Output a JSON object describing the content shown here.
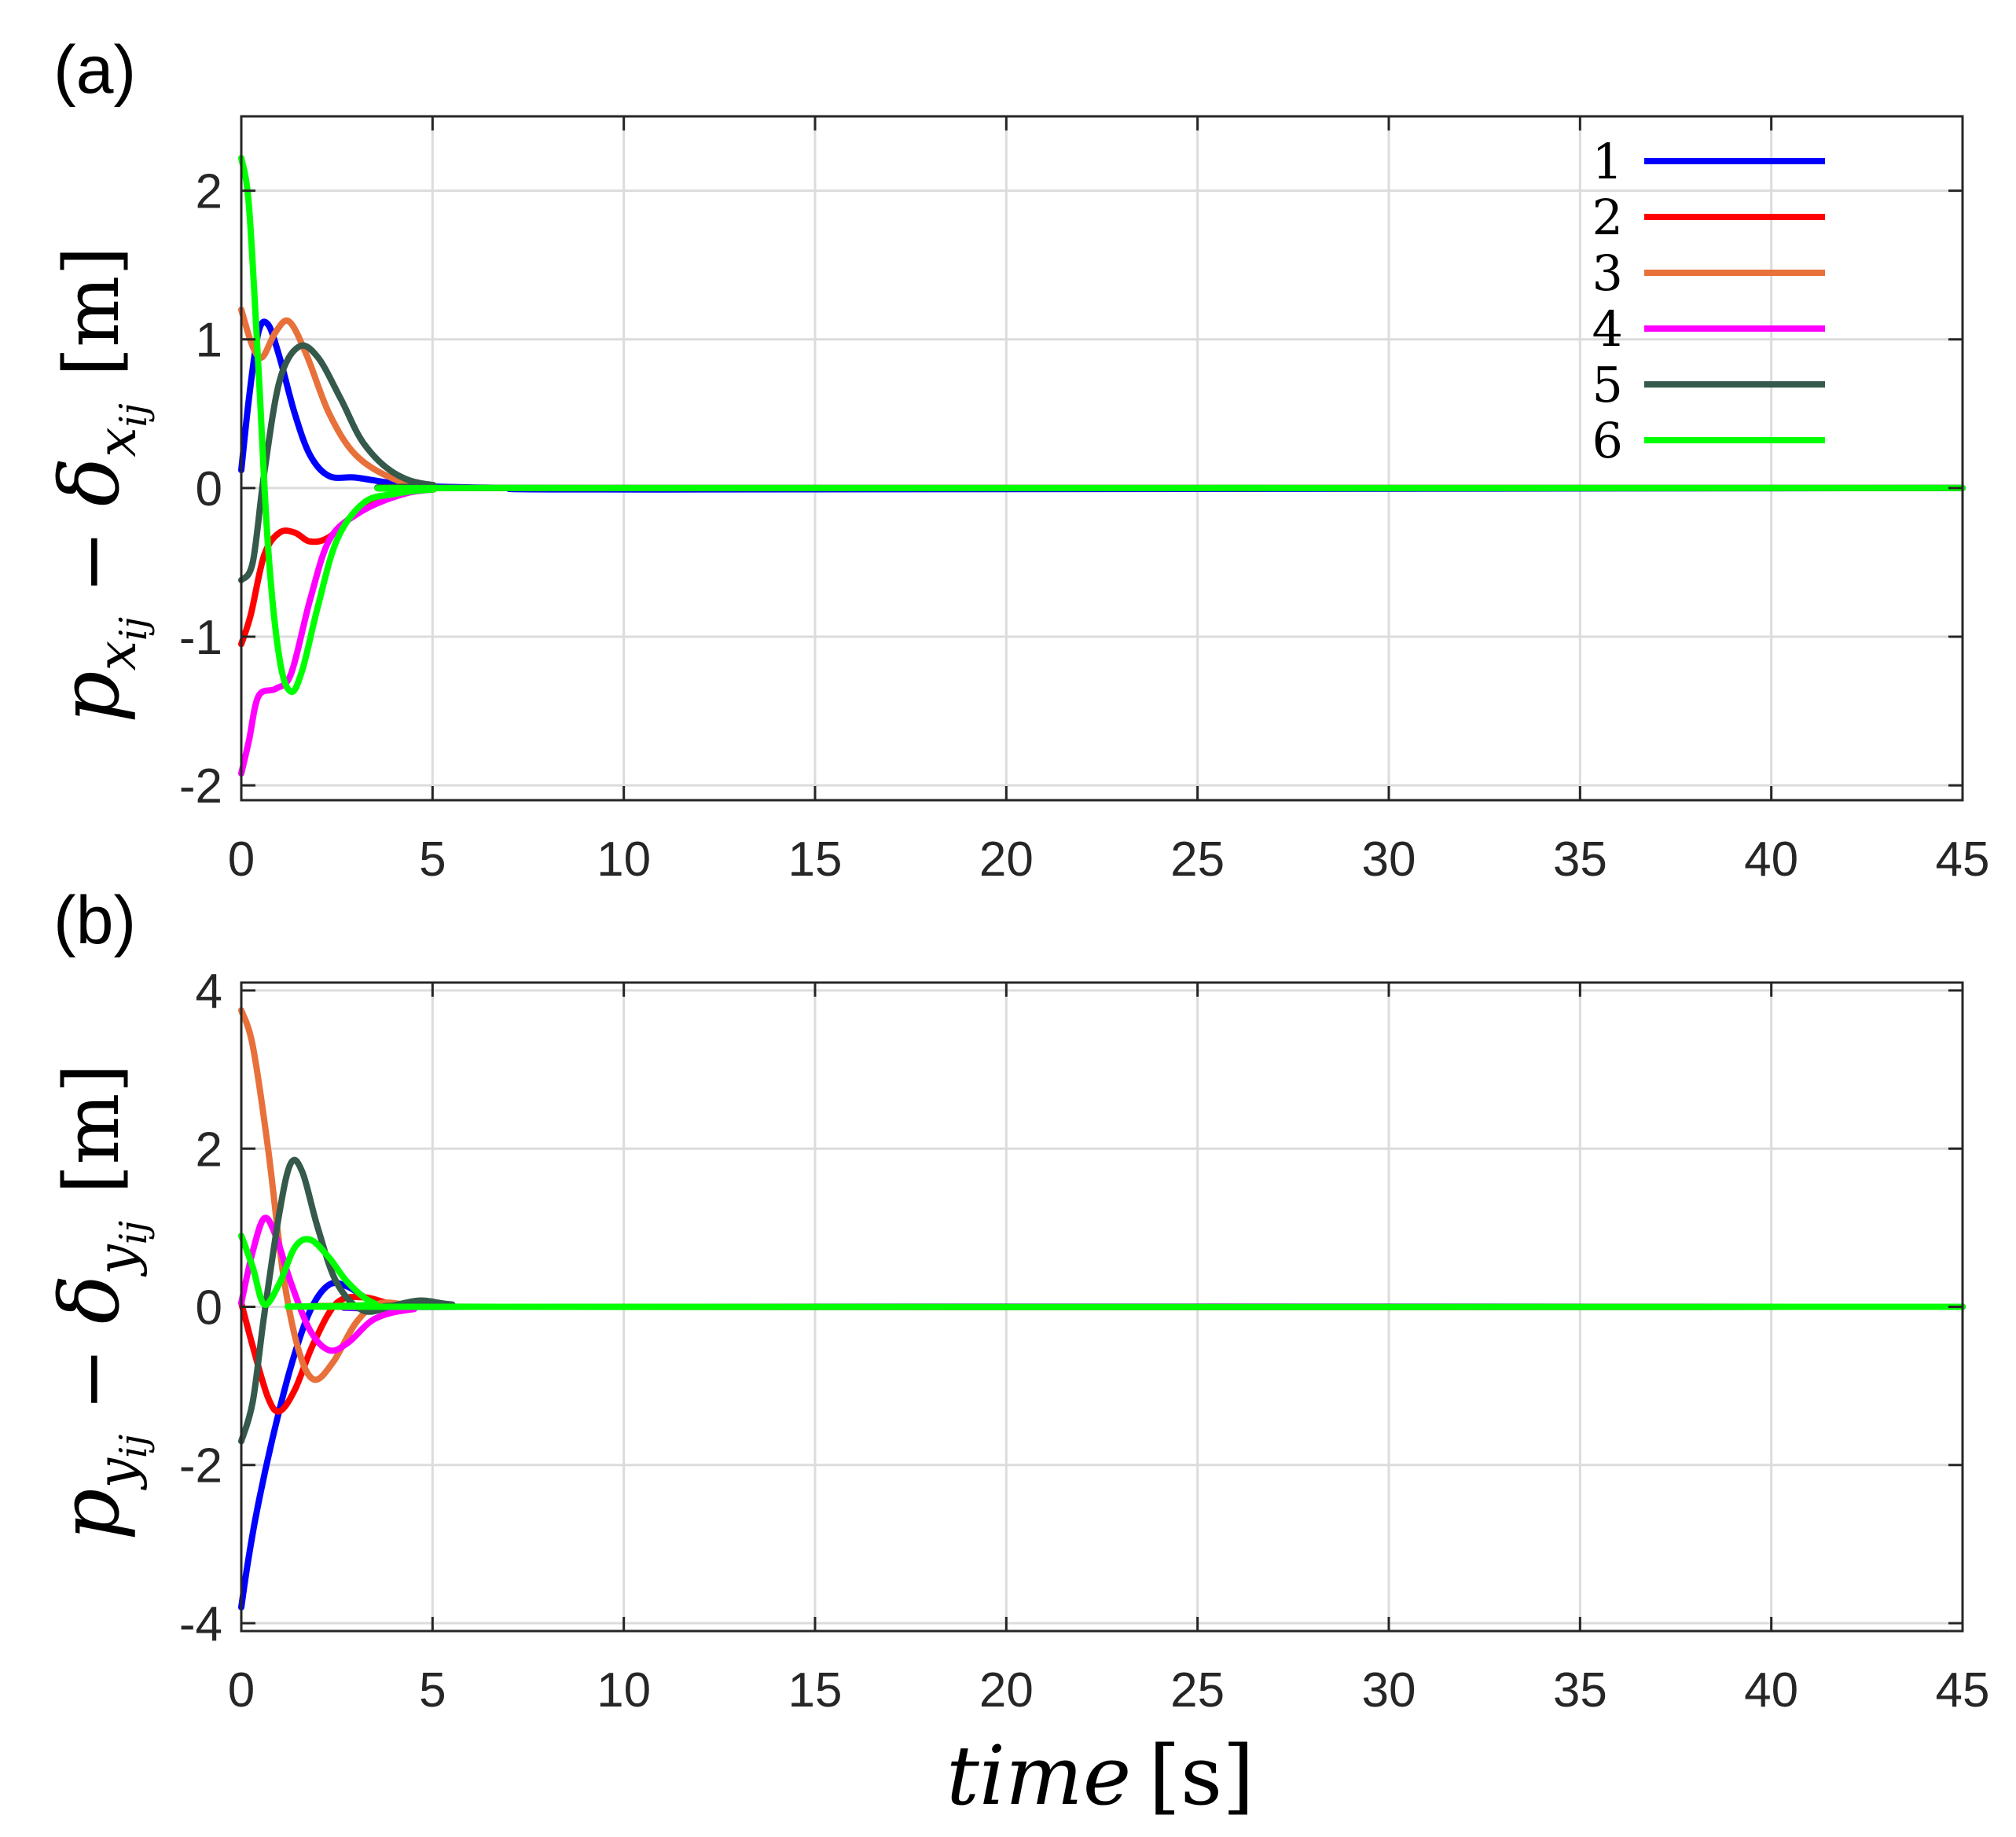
{
  "figure": {
    "xlabel_var": "time",
    "xlabel_unit": "[s]"
  },
  "chart_data": [
    {
      "type": "line",
      "panel_label": "(a)",
      "ylabel": {
        "var": "p",
        "sub": "x",
        "subsub": "ij",
        "minus": "−",
        "delta": "δ",
        "unit": "[m]"
      },
      "xlim": [
        0,
        45
      ],
      "ylim": [
        -2.1,
        2.5
      ],
      "xticks": [
        0,
        5,
        10,
        15,
        20,
        25,
        30,
        35,
        40,
        45
      ],
      "yticks": [
        -2,
        -1,
        0,
        1,
        2
      ],
      "grid": true,
      "legend_position": "top-right",
      "series": [
        {
          "name": "1",
          "color": "#0000ff",
          "points": [
            [
              0,
              0.12
            ],
            [
              0.2,
              0.6
            ],
            [
              0.45,
              1.05
            ],
            [
              0.7,
              1.1
            ],
            [
              1.0,
              0.88
            ],
            [
              1.4,
              0.5
            ],
            [
              1.8,
              0.22
            ],
            [
              2.3,
              0.08
            ],
            [
              3,
              0.07
            ],
            [
              4,
              0.03
            ],
            [
              5,
              0.01
            ],
            [
              7,
              0
            ],
            [
              11,
              -0.01
            ],
            [
              45,
              0
            ]
          ]
        },
        {
          "name": "2",
          "color": "#ff0000",
          "points": [
            [
              0,
              -1.05
            ],
            [
              0.25,
              -0.85
            ],
            [
              0.6,
              -0.45
            ],
            [
              1.0,
              -0.3
            ],
            [
              1.4,
              -0.3
            ],
            [
              1.8,
              -0.36
            ],
            [
              2.3,
              -0.33
            ],
            [
              3,
              -0.17
            ],
            [
              4,
              -0.05
            ],
            [
              5,
              -0.01
            ],
            [
              7,
              0
            ],
            [
              45,
              0
            ]
          ]
        },
        {
          "name": "3",
          "color": "#e8703a",
          "points": [
            [
              0,
              1.2
            ],
            [
              0.3,
              0.95
            ],
            [
              0.55,
              0.88
            ],
            [
              0.9,
              1.05
            ],
            [
              1.25,
              1.12
            ],
            [
              1.7,
              0.9
            ],
            [
              2.3,
              0.5
            ],
            [
              3,
              0.22
            ],
            [
              4,
              0.06
            ],
            [
              5,
              0.01
            ],
            [
              7,
              0
            ],
            [
              45,
              0
            ]
          ]
        },
        {
          "name": "4",
          "color": "#ff00ff",
          "points": [
            [
              0,
              -1.92
            ],
            [
              0.2,
              -1.7
            ],
            [
              0.45,
              -1.4
            ],
            [
              0.9,
              -1.35
            ],
            [
              1.3,
              -1.25
            ],
            [
              1.8,
              -0.75
            ],
            [
              2.3,
              -0.35
            ],
            [
              3,
              -0.18
            ],
            [
              4,
              -0.06
            ],
            [
              5,
              -0.01
            ],
            [
              7,
              0
            ],
            [
              45,
              0
            ]
          ]
        },
        {
          "name": "5",
          "color": "#35594a",
          "points": [
            [
              0,
              -0.62
            ],
            [
              0.3,
              -0.5
            ],
            [
              0.6,
              0.1
            ],
            [
              1.0,
              0.72
            ],
            [
              1.5,
              0.95
            ],
            [
              2.0,
              0.88
            ],
            [
              2.6,
              0.6
            ],
            [
              3.2,
              0.3
            ],
            [
              4,
              0.1
            ],
            [
              5,
              0.02
            ],
            [
              7,
              0
            ],
            [
              45,
              0
            ]
          ]
        },
        {
          "name": "6",
          "color": "#00ff00",
          "points": [
            [
              0,
              2.22
            ],
            [
              0.2,
              1.9
            ],
            [
              0.45,
              0.8
            ],
            [
              0.7,
              -0.4
            ],
            [
              1.0,
              -1.15
            ],
            [
              1.3,
              -1.37
            ],
            [
              1.6,
              -1.22
            ],
            [
              2.0,
              -0.8
            ],
            [
              2.5,
              -0.35
            ],
            [
              3.2,
              -0.1
            ],
            [
              4,
              -0.04
            ],
            [
              5,
              -0.01
            ],
            [
              7,
              0
            ],
            [
              45,
              0
            ]
          ]
        }
      ]
    },
    {
      "type": "line",
      "panel_label": "(b)",
      "ylabel": {
        "var": "p",
        "sub": "y",
        "subsub": "ij",
        "minus": "−",
        "delta": "δ",
        "unit": "[m]"
      },
      "xlim": [
        0,
        45
      ],
      "ylim": [
        -4.1,
        4.1
      ],
      "xticks": [
        0,
        5,
        10,
        15,
        20,
        25,
        30,
        35,
        40,
        45
      ],
      "yticks": [
        -4,
        -2,
        0,
        2,
        4
      ],
      "grid": true,
      "series": [
        {
          "name": "1",
          "color": "#0000ff",
          "points": [
            [
              0,
              -3.8
            ],
            [
              0.15,
              -3.3
            ],
            [
              0.4,
              -2.6
            ],
            [
              0.8,
              -1.7
            ],
            [
              1.3,
              -0.75
            ],
            [
              1.8,
              -0.05
            ],
            [
              2.3,
              0.28
            ],
            [
              2.8,
              0.25
            ],
            [
              3.5,
              0.05
            ],
            [
              4.5,
              -0.02
            ],
            [
              6,
              0
            ],
            [
              45,
              0
            ]
          ]
        },
        {
          "name": "2",
          "color": "#ff0000",
          "points": [
            [
              0,
              0.05
            ],
            [
              0.3,
              -0.5
            ],
            [
              0.7,
              -1.15
            ],
            [
              1.0,
              -1.32
            ],
            [
              1.4,
              -1.05
            ],
            [
              1.9,
              -0.45
            ],
            [
              2.5,
              0.05
            ],
            [
              3.2,
              0.12
            ],
            [
              4,
              0.03
            ],
            [
              5,
              0
            ],
            [
              45,
              0
            ]
          ]
        },
        {
          "name": "3",
          "color": "#e8703a",
          "points": [
            [
              0,
              3.75
            ],
            [
              0.3,
              3.3
            ],
            [
              0.7,
              2.0
            ],
            [
              1.1,
              0.4
            ],
            [
              1.5,
              -0.55
            ],
            [
              1.9,
              -0.92
            ],
            [
              2.4,
              -0.7
            ],
            [
              3,
              -0.2
            ],
            [
              3.6,
              0.04
            ],
            [
              4.5,
              0.02
            ],
            [
              6,
              0
            ],
            [
              45,
              0
            ]
          ]
        },
        {
          "name": "4",
          "color": "#ff00ff",
          "points": [
            [
              0,
              0.05
            ],
            [
              0.3,
              0.7
            ],
            [
              0.6,
              1.12
            ],
            [
              0.9,
              0.9
            ],
            [
              1.3,
              0.3
            ],
            [
              1.8,
              -0.3
            ],
            [
              2.3,
              -0.55
            ],
            [
              2.8,
              -0.45
            ],
            [
              3.5,
              -0.15
            ],
            [
              4.5,
              -0.03
            ],
            [
              6,
              0
            ],
            [
              45,
              0
            ]
          ]
        },
        {
          "name": "5",
          "color": "#35594a",
          "points": [
            [
              0,
              -1.7
            ],
            [
              0.3,
              -1.2
            ],
            [
              0.6,
              -0.1
            ],
            [
              1.0,
              1.2
            ],
            [
              1.3,
              1.82
            ],
            [
              1.6,
              1.7
            ],
            [
              2.0,
              1.0
            ],
            [
              2.5,
              0.3
            ],
            [
              3.2,
              -0.05
            ],
            [
              4,
              0.02
            ],
            [
              4.7,
              0.08
            ],
            [
              5.5,
              0.03
            ],
            [
              7,
              0
            ],
            [
              45,
              0
            ]
          ]
        },
        {
          "name": "6",
          "color": "#00ff00",
          "points": [
            [
              0,
              0.9
            ],
            [
              0.3,
              0.5
            ],
            [
              0.6,
              0.03
            ],
            [
              1.0,
              0.3
            ],
            [
              1.4,
              0.75
            ],
            [
              1.8,
              0.85
            ],
            [
              2.3,
              0.62
            ],
            [
              2.8,
              0.3
            ],
            [
              3.5,
              0.04
            ],
            [
              4.5,
              0
            ],
            [
              45,
              0
            ]
          ]
        }
      ]
    }
  ]
}
